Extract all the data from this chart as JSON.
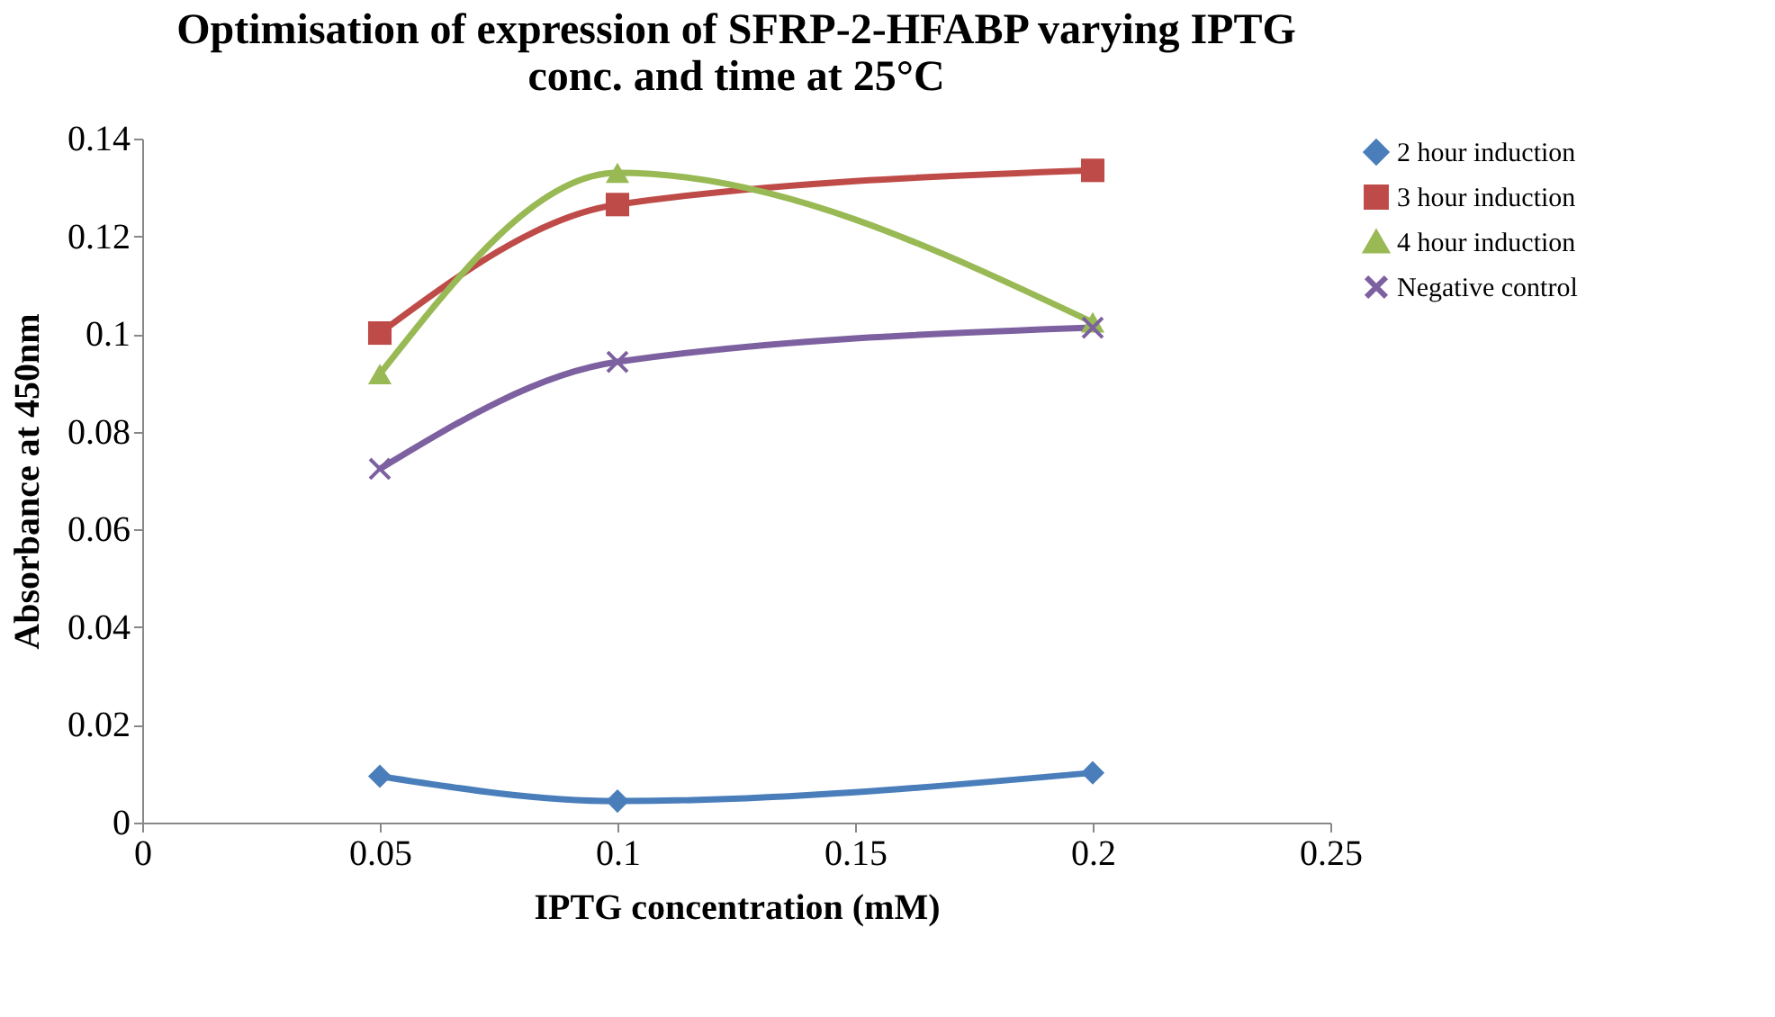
{
  "chart_data": {
    "type": "line",
    "title": "Optimisation of expression of SFRP-2-HFABP varying IPTG conc. and time at 25°C",
    "xlabel": "IPTG concentration (mM)",
    "ylabel": "Absorbance at 450nm",
    "x": [
      0.05,
      0.1,
      0.2
    ],
    "series": [
      {
        "name": "2 hour induction",
        "color": "#4a7ebb",
        "marker": "diamond",
        "values": [
          0.0095,
          0.0044,
          0.0102
        ]
      },
      {
        "name": "3 hour induction",
        "color": "#be4b48",
        "marker": "square",
        "values": [
          0.1002,
          0.1265,
          0.1335
        ]
      },
      {
        "name": "4 hour induction",
        "color": "#98b954",
        "marker": "triangle",
        "values": [
          0.0918,
          0.133,
          0.1024
        ]
      },
      {
        "name": "Negative control",
        "color": "#7d60a0",
        "marker": "cross",
        "values": [
          0.0724,
          0.0943,
          0.1013
        ]
      }
    ],
    "xlim": [
      0,
      0.25
    ],
    "xticks": [
      0,
      0.05,
      0.1,
      0.15,
      0.2,
      0.25
    ],
    "ylim": [
      0,
      0.14
    ],
    "yticks": [
      0,
      0.02,
      0.04,
      0.06,
      0.08,
      0.1,
      0.12,
      0.14
    ],
    "grid": false,
    "legend": "right",
    "line_style": "solid"
  }
}
